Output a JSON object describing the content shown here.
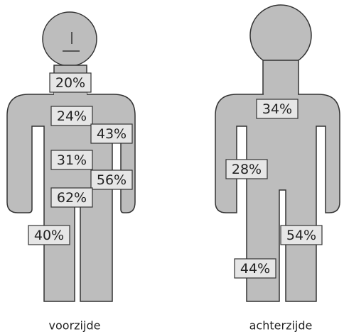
{
  "figures": [
    {
      "caption": "voorzijde",
      "labels": [
        "20%",
        "24%",
        "43%",
        "31%",
        "56%",
        "62%",
        "40%"
      ]
    },
    {
      "caption": "achterzijde",
      "labels": [
        "34%",
        "28%",
        "54%",
        "44%"
      ]
    }
  ]
}
